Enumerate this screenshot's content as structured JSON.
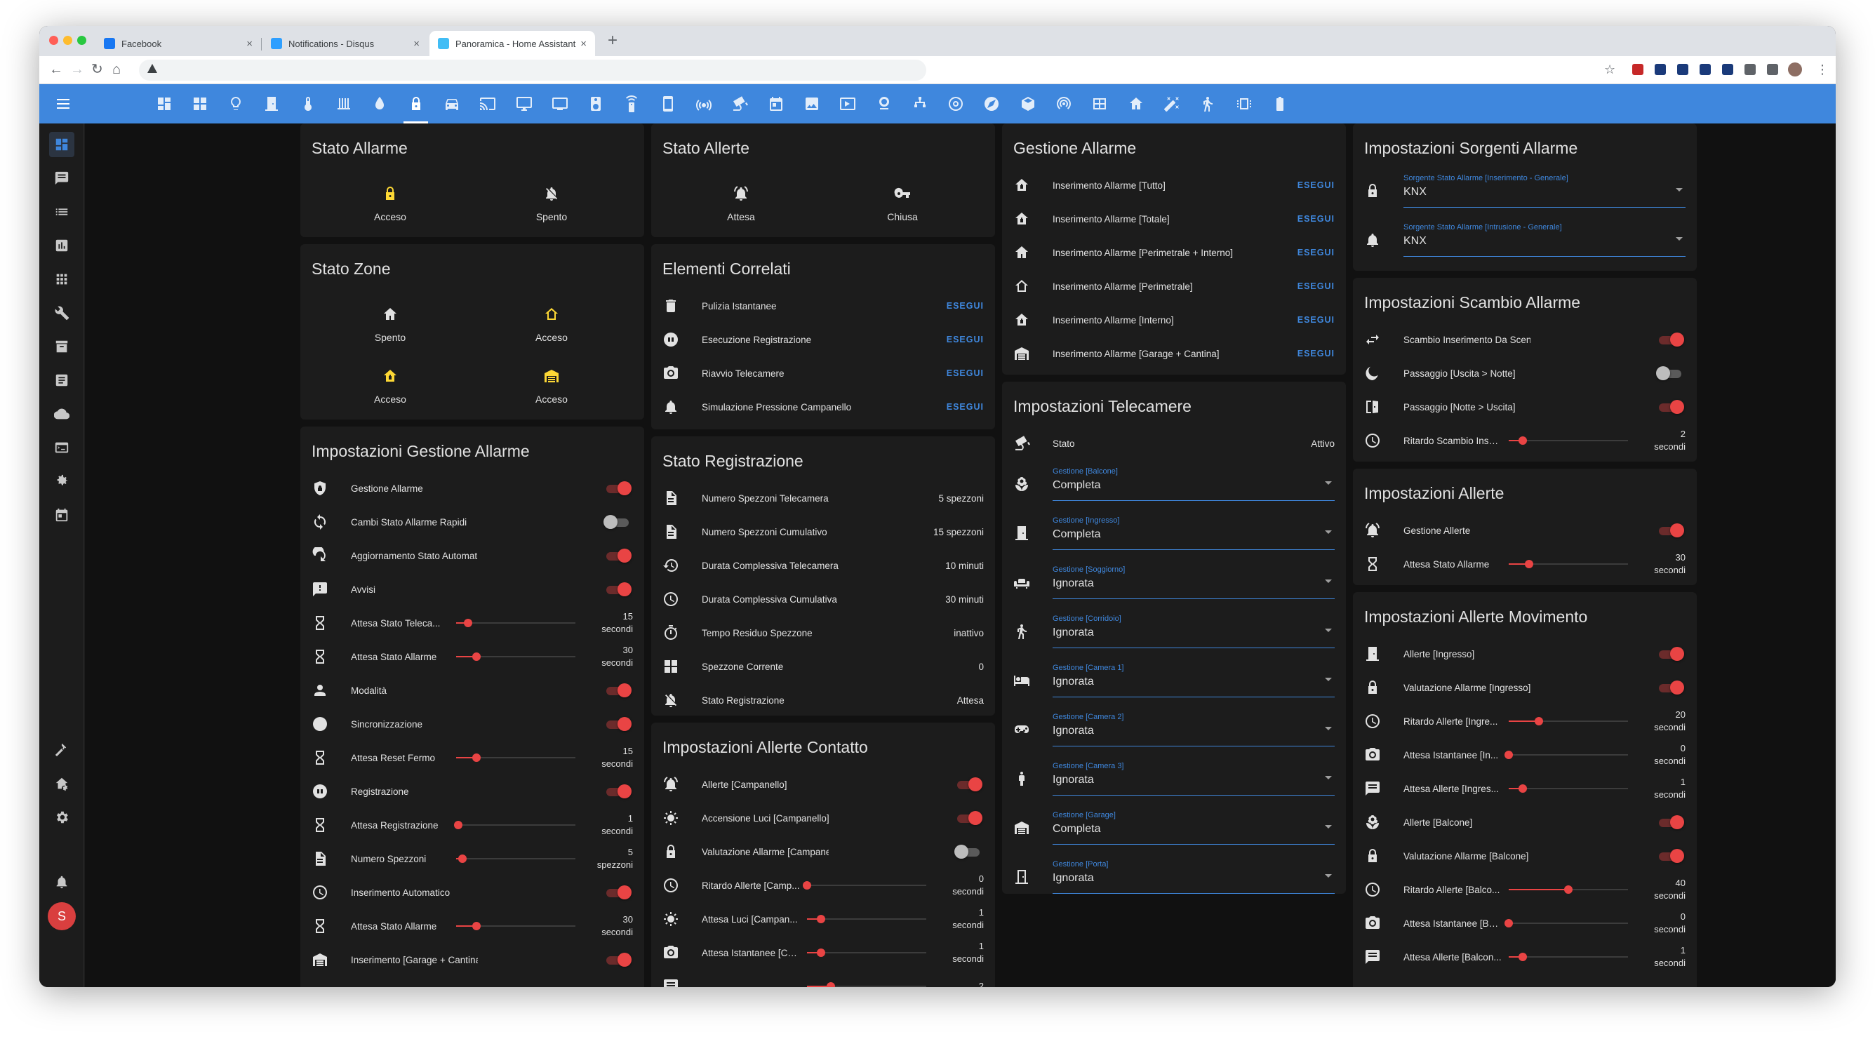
{
  "browser": {
    "tabs": [
      {
        "title": "Facebook",
        "favicon_color": "#1877f2",
        "active": false
      },
      {
        "title": "Notifications - Disqus",
        "favicon_color": "#2e9fff",
        "active": false
      },
      {
        "title": "Panoramica - Home Assistant",
        "favicon_color": "#41bdf5",
        "active": true
      }
    ],
    "url": ""
  },
  "theme": {
    "accent": "#3f87dd",
    "toggle_on": "#e94444",
    "card": "#1c1c1c",
    "text": "#e1e1e1"
  },
  "top_nav_icons": [
    "view-dashboard-icon",
    "grid-icon",
    "lightbulb-icon",
    "door-icon",
    "climate-icon",
    "radiator-icon",
    "water-icon",
    "lock-icon",
    "car-icon",
    "cast-icon",
    "monitor-icon",
    "tv-icon",
    "speaker-icon",
    "remote-icon",
    "phone-icon",
    "wifi-icon",
    "cctv-icon",
    "calendar-icon",
    "image-icon",
    "media-icon",
    "webcam-icon",
    "network-icon",
    "target-icon",
    "compass-icon",
    "cube-icon",
    "broadcast-icon",
    "panel-icon",
    "home-icon",
    "wand-icon",
    "walk-icon",
    "chip-icon",
    "battery-icon"
  ],
  "top_nav_selected": 7,
  "sidebar": {
    "top_icons": [
      "view-dashboard-icon",
      "message-icon",
      "list-icon",
      "chart-icon",
      "apps-icon",
      "wrench-icon",
      "archive-icon",
      "notes-icon",
      "cloud-icon",
      "terminal-icon",
      "cog-alt-icon",
      "calendar-icon"
    ],
    "bottom_icons": [
      "hammer-icon",
      "home-cog-icon",
      "settings-icon",
      "bell-icon"
    ],
    "avatar_initial": "S"
  },
  "col1": {
    "stato_allarme": {
      "title": "Stato Allarme",
      "items": [
        {
          "label": "Acceso",
          "icon": "lock-icon",
          "color": "#fdd835"
        },
        {
          "label": "Spento",
          "icon": "bell-off-icon",
          "color": "#e1e1e1"
        }
      ]
    },
    "stato_zone": {
      "title": "Stato Zone",
      "items": [
        {
          "label": "Spento",
          "icon": "home-icon",
          "color": "#e1e1e1"
        },
        {
          "label": "Acceso",
          "icon": "home-outline-icon",
          "color": "#fdd835"
        },
        {
          "label": "Acceso",
          "icon": "home-lock-icon",
          "color": "#fdd835"
        },
        {
          "label": "Acceso",
          "icon": "garage-icon",
          "color": "#fdd835"
        }
      ]
    },
    "impostazioni_gestione": {
      "title": "Impostazioni Gestione Allarme",
      "rows": [
        {
          "kind": "toggle",
          "label": "Gestione Allarme",
          "on": true,
          "icon": "shield-icon"
        },
        {
          "kind": "toggle",
          "label": "Cambi Stato Allarme Rapidi",
          "on": false,
          "icon": "sync-icon"
        },
        {
          "kind": "toggle",
          "label": "Aggiornamento Stato Automatico",
          "on": true,
          "icon": "refresh-icon"
        },
        {
          "kind": "toggle",
          "label": "Avvisi",
          "on": true,
          "icon": "alert-message-icon"
        },
        {
          "kind": "slider",
          "label": "Attesa Stato Teleca...",
          "value": "15",
          "unit": "secondi",
          "fill": 0.1,
          "icon": "hourglass-icon"
        },
        {
          "kind": "slider",
          "label": "Attesa Stato Allarme",
          "value": "30",
          "unit": "secondi",
          "fill": 0.17,
          "icon": "hourglass-icon"
        },
        {
          "kind": "toggle",
          "label": "Modalità",
          "on": true,
          "icon": "account-icon"
        },
        {
          "kind": "toggle",
          "label": "Sincronizzazione",
          "on": true,
          "icon": "sync-circle-icon"
        },
        {
          "kind": "slider",
          "label": "Attesa Reset Fermo",
          "value": "15",
          "unit": "secondi",
          "fill": 0.17,
          "icon": "hourglass-icon"
        },
        {
          "kind": "toggle",
          "label": "Registrazione",
          "on": true,
          "icon": "record-icon"
        },
        {
          "kind": "slider",
          "label": "Attesa Registrazione",
          "value": "1",
          "unit": "secondi",
          "fill": 0.02,
          "icon": "hourglass-icon"
        },
        {
          "kind": "slider",
          "label": "Numero Spezzoni",
          "value": "5",
          "unit": "spezzoni",
          "fill": 0.05,
          "icon": "file-icon"
        },
        {
          "kind": "toggle",
          "label": "Inserimento Automatico",
          "on": true,
          "icon": "clock-icon"
        },
        {
          "kind": "slider",
          "label": "Attesa Stato Allarme",
          "value": "30",
          "unit": "secondi",
          "fill": 0.17,
          "icon": "hourglass-icon"
        },
        {
          "kind": "toggle",
          "label": "Inserimento [Garage + Cantina]",
          "on": true,
          "icon": "garage-icon"
        }
      ]
    }
  },
  "col2": {
    "stato_allerte": {
      "title": "Stato Allerte",
      "items": [
        {
          "label": "Attesa",
          "icon": "bell-ring-icon",
          "color": "#e1e1e1"
        },
        {
          "label": "Chiusa",
          "icon": "key-icon",
          "color": "#e1e1e1"
        }
      ]
    },
    "elementi_correlati": {
      "title": "Elementi Correlati",
      "rows": [
        {
          "label": "Pulizia Istantanee",
          "action": "ESEGUI",
          "icon": "delete-icon"
        },
        {
          "label": "Esecuzione Registrazione",
          "action": "ESEGUI",
          "icon": "record-icon"
        },
        {
          "label": "Riavvio Telecamere",
          "action": "ESEGUI",
          "icon": "camera-icon"
        },
        {
          "label": "Simulazione Pressione Campanello",
          "action": "ESEGUI",
          "icon": "bell-icon"
        }
      ]
    },
    "stato_registrazione": {
      "title": "Stato Registrazione",
      "rows": [
        {
          "label": "Numero Spezzoni Telecamera",
          "value": "5 spezzoni",
          "icon": "file-icon"
        },
        {
          "label": "Numero Spezzoni Cumulativo",
          "value": "15 spezzoni",
          "icon": "file-icon"
        },
        {
          "label": "Durata Complessiva Telecamera",
          "value": "10 minuti",
          "icon": "history-icon"
        },
        {
          "label": "Durata Complessiva Cumulativa",
          "value": "30 minuti",
          "icon": "clock-icon"
        },
        {
          "label": "Tempo Residuo Spezzone",
          "value": "inattivo",
          "icon": "timer-icon"
        },
        {
          "label": "Spezzone Corrente",
          "value": "0",
          "icon": "grid-icon"
        },
        {
          "label": "Stato Registrazione",
          "value": "Attesa",
          "icon": "bell-off-icon"
        }
      ]
    },
    "allerte_contatto": {
      "title": "Impostazioni Allerte Contatto",
      "rows": [
        {
          "kind": "toggle",
          "label": "Allerte [Campanello]",
          "on": true,
          "icon": "bell-ring-icon"
        },
        {
          "kind": "toggle",
          "label": "Accensione Luci [Campanello]",
          "on": true,
          "icon": "brightness-icon"
        },
        {
          "kind": "toggle",
          "label": "Valutazione Allarme [Campanello]",
          "on": false,
          "icon": "lock-icon"
        },
        {
          "kind": "slider",
          "label": "Ritardo Allerte [Camp...",
          "value": "0",
          "unit": "secondi",
          "fill": 0.0,
          "icon": "clock-icon"
        },
        {
          "kind": "slider",
          "label": "Attesa Luci [Campan...",
          "value": "1",
          "unit": "secondi",
          "fill": 0.12,
          "icon": "brightness-icon"
        },
        {
          "kind": "slider",
          "label": "Attesa Istantanee [Ca...",
          "value": "1",
          "unit": "secondi",
          "fill": 0.12,
          "icon": "camera-icon"
        },
        {
          "kind": "slider",
          "label": "",
          "value": "2",
          "unit": "",
          "fill": 0.2,
          "icon": "message-icon"
        }
      ]
    }
  },
  "col3": {
    "gestione_allarme": {
      "title": "Gestione Allarme",
      "rows": [
        {
          "label": "Inserimento Allarme [Tutto]",
          "action": "ESEGUI",
          "icon": "home-lock-icon"
        },
        {
          "label": "Inserimento Allarme [Totale]",
          "action": "ESEGUI",
          "icon": "home-lock-icon"
        },
        {
          "label": "Inserimento Allarme [Perimetrale + Interno]",
          "action": "ESEGUI",
          "icon": "home-icon"
        },
        {
          "label": "Inserimento Allarme [Perimetrale]",
          "action": "ESEGUI",
          "icon": "home-outline-icon"
        },
        {
          "label": "Inserimento Allarme [Interno]",
          "action": "ESEGUI",
          "icon": "home-lock-icon"
        },
        {
          "label": "Inserimento Allarme [Garage + Cantina]",
          "action": "ESEGUI",
          "icon": "garage-icon"
        }
      ]
    },
    "telecamere": {
      "title": "Impostazioni Telecamere",
      "stato_label": "Stato",
      "stato_value": "Attivo",
      "selects": [
        {
          "label": "Gestione [Balcone]",
          "value": "Completa",
          "icon": "flower-icon"
        },
        {
          "label": "Gestione [Ingresso]",
          "value": "Completa",
          "icon": "door-icon"
        },
        {
          "label": "Gestione [Soggiorno]",
          "value": "Ignorata",
          "icon": "sofa-icon"
        },
        {
          "label": "Gestione [Corridoio]",
          "value": "Ignorata",
          "icon": "walk-icon"
        },
        {
          "label": "Gestione [Camera 1]",
          "value": "Ignorata",
          "icon": "bed-icon"
        },
        {
          "label": "Gestione [Camera 2]",
          "value": "Ignorata",
          "icon": "gamepad-icon"
        },
        {
          "label": "Gestione [Camera 3]",
          "value": "Ignorata",
          "icon": "human-child-icon"
        },
        {
          "label": "Gestione [Garage]",
          "value": "Completa",
          "icon": "garage-icon"
        },
        {
          "label": "Gestione [Porta]",
          "value": "Ignorata",
          "icon": "door-closed-icon"
        }
      ]
    }
  },
  "col4": {
    "sorgenti": {
      "title": "Impostazioni Sorgenti Allarme",
      "selects": [
        {
          "label": "Sorgente Stato Allarme [Inserimento - Generale]",
          "value": "KNX",
          "icon": "lock-icon"
        },
        {
          "label": "Sorgente Stato Allarme [Intrusione - Generale]",
          "value": "KNX",
          "icon": "bell-icon"
        }
      ]
    },
    "scambio": {
      "title": "Impostazioni Scambio Allarme",
      "rows": [
        {
          "kind": "toggle",
          "label": "Scambio Inserimento Da Scenari",
          "on": true,
          "icon": "swap-icon"
        },
        {
          "kind": "toggle",
          "label": "Passaggio [Uscita > Notte]",
          "on": false,
          "icon": "moon-icon"
        },
        {
          "kind": "toggle",
          "label": "Passaggio [Notte > Uscita]",
          "on": true,
          "icon": "door-open-icon"
        },
        {
          "kind": "slider",
          "label": "Ritardo Scambio Inse...",
          "value": "2",
          "unit": "secondi",
          "fill": 0.12,
          "icon": "clock-icon"
        }
      ]
    },
    "allerte": {
      "title": "Impostazioni Allerte",
      "rows": [
        {
          "kind": "toggle",
          "label": "Gestione Allerte",
          "on": true,
          "icon": "bell-ring-icon"
        },
        {
          "kind": "slider",
          "label": "Attesa Stato Allarme",
          "value": "30",
          "unit": "secondi",
          "fill": 0.17,
          "icon": "hourglass-icon"
        }
      ]
    },
    "movimento": {
      "title": "Impostazioni Allerte Movimento",
      "rows": [
        {
          "kind": "toggle",
          "label": "Allerte [Ingresso]",
          "on": true,
          "icon": "door-icon"
        },
        {
          "kind": "toggle",
          "label": "Valutazione Allarme [Ingresso]",
          "on": true,
          "icon": "lock-icon"
        },
        {
          "kind": "slider",
          "label": "Ritardo Allerte [Ingre...",
          "value": "20",
          "unit": "secondi",
          "fill": 0.25,
          "icon": "clock-icon"
        },
        {
          "kind": "slider",
          "label": "Attesa Istantanee [In...",
          "value": "0",
          "unit": "secondi",
          "fill": 0.0,
          "icon": "camera-icon"
        },
        {
          "kind": "slider",
          "label": "Attesa Allerte [Ingres...",
          "value": "1",
          "unit": "secondi",
          "fill": 0.12,
          "icon": "message-icon"
        },
        {
          "kind": "toggle",
          "label": "Allerte [Balcone]",
          "on": true,
          "icon": "flower-icon"
        },
        {
          "kind": "toggle",
          "label": "Valutazione Allarme [Balcone]",
          "on": true,
          "icon": "lock-icon"
        },
        {
          "kind": "slider",
          "label": "Ritardo Allerte [Balco...",
          "value": "40",
          "unit": "secondi",
          "fill": 0.5,
          "icon": "clock-icon"
        },
        {
          "kind": "slider",
          "label": "Attesa Istantanee [Ba...",
          "value": "0",
          "unit": "secondi",
          "fill": 0.0,
          "icon": "camera-icon"
        },
        {
          "kind": "slider",
          "label": "Attesa Allerte [Balcon...",
          "value": "1",
          "unit": "secondi",
          "fill": 0.12,
          "icon": "message-icon"
        }
      ]
    }
  }
}
